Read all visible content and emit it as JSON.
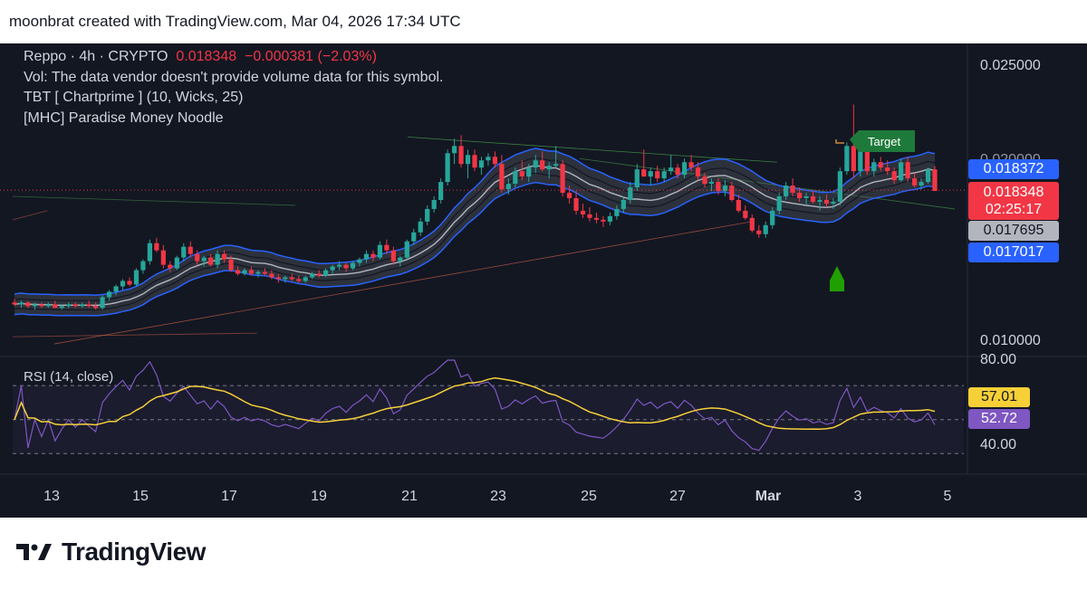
{
  "header": {
    "caption": "moonbrat created with TradingView.com, Mar 04, 2026 17:34 UTC"
  },
  "legend": {
    "symbol": "Reppo · 4h · CRYPTO",
    "price": "0.018348",
    "change": "−0.000381 (−2.03%)",
    "volume_note": "Vol: The data vendor doesn't provide volume data for this symbol.",
    "indicator_1": "TBT [ Chartprime ] (10, Wicks,   25)",
    "indicator_2": "[MHC] Paradise Money Noodle"
  },
  "price_axis": {
    "top_label": "0.025000",
    "bottom_label": "0.010000",
    "partial_label": "0.020000"
  },
  "price_tags": {
    "upper_band": "0.018372",
    "last_price": "0.018348",
    "countdown": "02:25:17",
    "mid_band": "0.017695",
    "lower_band": "0.017017"
  },
  "rsi": {
    "title": "RSI (14, close)",
    "axis_top": "80.00",
    "axis_bottom": "40.00",
    "signal_tag": "57.01",
    "rsi_tag": "52.72"
  },
  "time_axis": {
    "labels": [
      "13",
      "15",
      "17",
      "19",
      "21",
      "23",
      "25",
      "27",
      "Mar",
      "3",
      "5"
    ]
  },
  "target_label": "Target",
  "footer": {
    "brand": "TradingView"
  },
  "colors": {
    "background": "#131722",
    "up": "#26a69a",
    "down": "#f23645",
    "band_outer": "#2962ff",
    "band_mid": "#b2b5be",
    "rsi_line": "#7e57c2",
    "rsi_signal": "#f7d038",
    "target": "#1e7a3a"
  },
  "chart_data": [
    {
      "type": "candlestick",
      "title": "Reppo · 4h · CRYPTO",
      "x_axis": "date (Feb 13 – Mar 5, 2026), 4h bars",
      "ylim": [
        0.0093,
        0.0265
      ],
      "last_price": 0.018348,
      "series_ohlc_approx": [
        [
          0.0121,
          0.0123,
          0.0119,
          0.012
        ],
        [
          0.012,
          0.0122,
          0.0118,
          0.0121
        ],
        [
          0.0121,
          0.0122,
          0.0118,
          0.0119
        ],
        [
          0.0119,
          0.0121,
          0.0117,
          0.012
        ],
        [
          0.012,
          0.0121,
          0.0118,
          0.0119
        ],
        [
          0.0119,
          0.0121,
          0.0118,
          0.012
        ],
        [
          0.012,
          0.0122,
          0.0118,
          0.0118
        ],
        [
          0.0118,
          0.012,
          0.0117,
          0.0119
        ],
        [
          0.0119,
          0.0121,
          0.0118,
          0.012
        ],
        [
          0.012,
          0.0121,
          0.0118,
          0.0119
        ],
        [
          0.0119,
          0.0121,
          0.0118,
          0.012
        ],
        [
          0.012,
          0.0122,
          0.0118,
          0.0119
        ],
        [
          0.0119,
          0.0121,
          0.0117,
          0.0118
        ],
        [
          0.0118,
          0.0125,
          0.0117,
          0.0124
        ],
        [
          0.0124,
          0.0128,
          0.0122,
          0.0127
        ],
        [
          0.0127,
          0.0131,
          0.0125,
          0.013
        ],
        [
          0.013,
          0.0134,
          0.0128,
          0.0133
        ],
        [
          0.0133,
          0.0135,
          0.013,
          0.0131
        ],
        [
          0.0131,
          0.014,
          0.013,
          0.0139
        ],
        [
          0.0139,
          0.0145,
          0.0137,
          0.0144
        ],
        [
          0.0144,
          0.0156,
          0.0142,
          0.0154
        ],
        [
          0.0154,
          0.0157,
          0.0149,
          0.015
        ],
        [
          0.015,
          0.0153,
          0.014,
          0.0142
        ],
        [
          0.0142,
          0.0144,
          0.0138,
          0.014
        ],
        [
          0.014,
          0.0147,
          0.0139,
          0.0146
        ],
        [
          0.0146,
          0.0154,
          0.0144,
          0.0152
        ],
        [
          0.0152,
          0.0155,
          0.0146,
          0.0148
        ],
        [
          0.0148,
          0.015,
          0.0142,
          0.0144
        ],
        [
          0.0144,
          0.0147,
          0.0141,
          0.0146
        ],
        [
          0.0146,
          0.0148,
          0.0141,
          0.0142
        ],
        [
          0.0142,
          0.015,
          0.014,
          0.0148
        ],
        [
          0.0148,
          0.015,
          0.0143,
          0.0145
        ],
        [
          0.0145,
          0.0147,
          0.0138,
          0.0139
        ],
        [
          0.0139,
          0.0141,
          0.0136,
          0.0137
        ],
        [
          0.0137,
          0.014,
          0.0136,
          0.0139
        ],
        [
          0.0139,
          0.0141,
          0.0136,
          0.0137
        ],
        [
          0.0137,
          0.0139,
          0.0135,
          0.0138
        ],
        [
          0.0138,
          0.014,
          0.0136,
          0.0137
        ],
        [
          0.0137,
          0.0139,
          0.0134,
          0.0135
        ],
        [
          0.0135,
          0.0137,
          0.0132,
          0.0134
        ],
        [
          0.0134,
          0.0136,
          0.0132,
          0.0135
        ],
        [
          0.0135,
          0.0137,
          0.0133,
          0.0134
        ],
        [
          0.0134,
          0.0136,
          0.0132,
          0.0133
        ],
        [
          0.0133,
          0.0136,
          0.0132,
          0.0135
        ],
        [
          0.0135,
          0.0138,
          0.0134,
          0.0137
        ],
        [
          0.0137,
          0.0139,
          0.0135,
          0.0136
        ],
        [
          0.0136,
          0.014,
          0.0135,
          0.0139
        ],
        [
          0.0139,
          0.0142,
          0.0137,
          0.0141
        ],
        [
          0.0141,
          0.0144,
          0.0139,
          0.0142
        ],
        [
          0.0142,
          0.0143,
          0.0138,
          0.014
        ],
        [
          0.014,
          0.0144,
          0.0139,
          0.0143
        ],
        [
          0.0143,
          0.0146,
          0.0141,
          0.0145
        ],
        [
          0.0145,
          0.015,
          0.0143,
          0.0148
        ],
        [
          0.0148,
          0.015,
          0.0144,
          0.0146
        ],
        [
          0.0146,
          0.0155,
          0.0145,
          0.0153
        ],
        [
          0.0153,
          0.0156,
          0.0148,
          0.015
        ],
        [
          0.015,
          0.0152,
          0.0142,
          0.0144
        ],
        [
          0.0144,
          0.0147,
          0.0141,
          0.0146
        ],
        [
          0.0146,
          0.0156,
          0.0145,
          0.0155
        ],
        [
          0.0155,
          0.0162,
          0.0153,
          0.016
        ],
        [
          0.016,
          0.0168,
          0.0158,
          0.0166
        ],
        [
          0.0166,
          0.0175,
          0.0164,
          0.0173
        ],
        [
          0.0173,
          0.018,
          0.0171,
          0.0178
        ],
        [
          0.0178,
          0.019,
          0.0176,
          0.0188
        ],
        [
          0.0188,
          0.0206,
          0.0186,
          0.0204
        ],
        [
          0.0204,
          0.0212,
          0.0198,
          0.0208
        ],
        [
          0.0208,
          0.0214,
          0.0196,
          0.0198
        ],
        [
          0.0198,
          0.0206,
          0.019,
          0.0203
        ],
        [
          0.0203,
          0.0206,
          0.0194,
          0.0196
        ],
        [
          0.0196,
          0.0202,
          0.0192,
          0.02
        ],
        [
          0.02,
          0.0204,
          0.0197,
          0.0202
        ],
        [
          0.0202,
          0.0205,
          0.0196,
          0.0198
        ],
        [
          0.0198,
          0.0203,
          0.0182,
          0.0184
        ],
        [
          0.0184,
          0.019,
          0.0181,
          0.0187
        ],
        [
          0.0187,
          0.0196,
          0.0185,
          0.0194
        ],
        [
          0.0194,
          0.02,
          0.0189,
          0.0191
        ],
        [
          0.0191,
          0.0198,
          0.0188,
          0.0196
        ],
        [
          0.0196,
          0.0203,
          0.0193,
          0.02
        ],
        [
          0.02,
          0.0205,
          0.0194,
          0.0195
        ],
        [
          0.0195,
          0.0199,
          0.019,
          0.0197
        ],
        [
          0.0197,
          0.0208,
          0.0196,
          0.0198
        ],
        [
          0.0198,
          0.02,
          0.018,
          0.0182
        ],
        [
          0.0182,
          0.0186,
          0.0176,
          0.0179
        ],
        [
          0.0179,
          0.0183,
          0.017,
          0.0172
        ],
        [
          0.0172,
          0.0176,
          0.0168,
          0.017
        ],
        [
          0.017,
          0.0174,
          0.0166,
          0.0168
        ],
        [
          0.0168,
          0.0171,
          0.0165,
          0.0167
        ],
        [
          0.0167,
          0.0169,
          0.0163,
          0.0166
        ],
        [
          0.0166,
          0.0171,
          0.0164,
          0.0169
        ],
        [
          0.0169,
          0.0175,
          0.0167,
          0.0173
        ],
        [
          0.0173,
          0.018,
          0.0171,
          0.0178
        ],
        [
          0.0178,
          0.0188,
          0.0176,
          0.0185
        ],
        [
          0.0185,
          0.0198,
          0.0183,
          0.0195
        ],
        [
          0.0195,
          0.0206,
          0.0191,
          0.0191
        ],
        [
          0.0191,
          0.0196,
          0.0186,
          0.0194
        ],
        [
          0.0194,
          0.0197,
          0.0188,
          0.019
        ],
        [
          0.019,
          0.0196,
          0.0188,
          0.0194
        ],
        [
          0.0194,
          0.0203,
          0.0192,
          0.0196
        ],
        [
          0.0196,
          0.0198,
          0.019,
          0.0192
        ],
        [
          0.0192,
          0.0201,
          0.019,
          0.0199
        ],
        [
          0.0199,
          0.0203,
          0.0194,
          0.0196
        ],
        [
          0.0196,
          0.0199,
          0.0189,
          0.0191
        ],
        [
          0.0191,
          0.0193,
          0.0185,
          0.0187
        ],
        [
          0.0187,
          0.019,
          0.0183,
          0.0188
        ],
        [
          0.0188,
          0.019,
          0.0181,
          0.0183
        ],
        [
          0.0183,
          0.0189,
          0.018,
          0.0186
        ],
        [
          0.0186,
          0.0188,
          0.0177,
          0.0178
        ],
        [
          0.0178,
          0.0181,
          0.0171,
          0.0172
        ],
        [
          0.0172,
          0.0175,
          0.0167,
          0.0168
        ],
        [
          0.0168,
          0.017,
          0.016,
          0.0161
        ],
        [
          0.0161,
          0.0164,
          0.0157,
          0.0159
        ],
        [
          0.0159,
          0.0166,
          0.0157,
          0.0164
        ],
        [
          0.0164,
          0.0174,
          0.0162,
          0.0172
        ],
        [
          0.0172,
          0.0182,
          0.017,
          0.018
        ],
        [
          0.018,
          0.0188,
          0.0178,
          0.0186
        ],
        [
          0.0186,
          0.019,
          0.018,
          0.0182
        ],
        [
          0.0182,
          0.0185,
          0.0177,
          0.0179
        ],
        [
          0.0179,
          0.0182,
          0.0175,
          0.018
        ],
        [
          0.018,
          0.0183,
          0.0176,
          0.0177
        ],
        [
          0.0177,
          0.018,
          0.0172,
          0.0178
        ],
        [
          0.0178,
          0.0181,
          0.0174,
          0.0176
        ],
        [
          0.0176,
          0.0179,
          0.0173,
          0.0177
        ],
        [
          0.0177,
          0.0196,
          0.0175,
          0.0194
        ],
        [
          0.0194,
          0.021,
          0.0192,
          0.0208
        ],
        [
          0.0208,
          0.0231,
          0.019,
          0.0194
        ],
        [
          0.0194,
          0.0209,
          0.0191,
          0.0207
        ],
        [
          0.0207,
          0.0209,
          0.0192,
          0.0194
        ],
        [
          0.0194,
          0.0201,
          0.0191,
          0.0199
        ],
        [
          0.0199,
          0.0202,
          0.0194,
          0.0196
        ],
        [
          0.0196,
          0.02,
          0.0192,
          0.0194
        ],
        [
          0.0194,
          0.0196,
          0.0187,
          0.0189
        ],
        [
          0.0189,
          0.0201,
          0.0188,
          0.0199
        ],
        [
          0.0199,
          0.0202,
          0.0188,
          0.019
        ],
        [
          0.019,
          0.0193,
          0.0185,
          0.0186
        ],
        [
          0.0186,
          0.019,
          0.0184,
          0.0188
        ],
        [
          0.0188,
          0.0196,
          0.0187,
          0.0195
        ],
        [
          0.0195,
          0.0197,
          0.0183,
          0.0183
        ]
      ],
      "bands_last": {
        "upper": 0.018372,
        "mid": 0.017695,
        "lower": 0.017017
      },
      "annotations": [
        "Target"
      ]
    },
    {
      "type": "line",
      "title": "RSI (14, close)",
      "ylim": [
        20,
        85
      ],
      "guide_levels": [
        70,
        50,
        30
      ],
      "series": [
        {
          "name": "RSI",
          "last": 52.72
        },
        {
          "name": "signal",
          "last": 57.01
        }
      ]
    }
  ]
}
